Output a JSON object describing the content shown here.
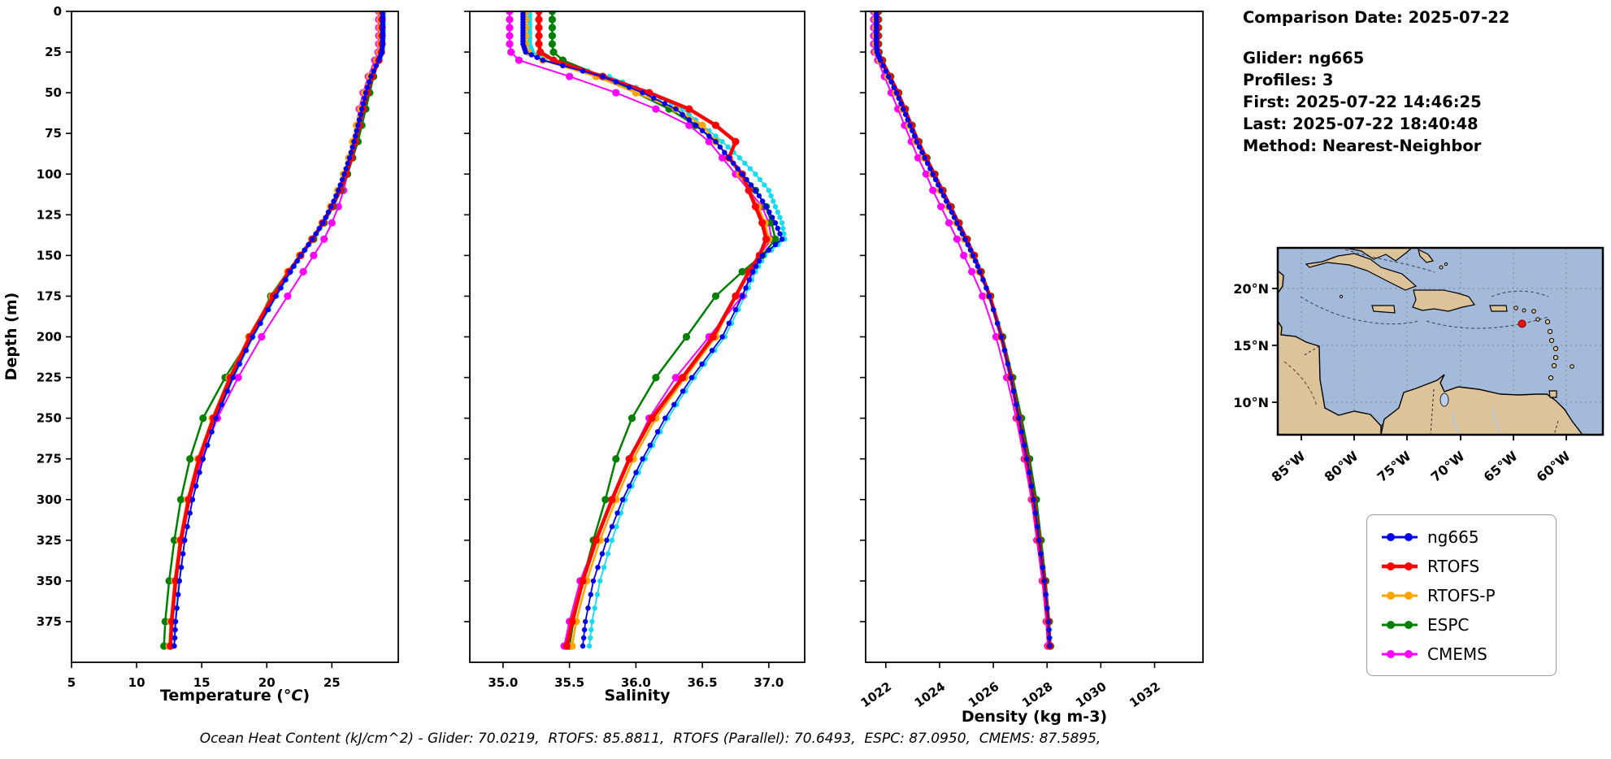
{
  "info": {
    "comparison_date": "Comparison Date: 2025-07-22",
    "glider": "Glider: ng665",
    "profiles": "Profiles: 3",
    "first": "First: 2025-07-22 14:46:25",
    "last": "Last: 2025-07-22 18:40:48",
    "method": "Method: Nearest-Neighbor"
  },
  "footer": {
    "caption": "Ocean Heat Content (kJ/cm^2) - Glider: 70.0219,  RTOFS: 85.8811,  RTOFS (Parallel): 70.6493,  ESPC: 87.0950,  CMEMS: 87.5895,"
  },
  "legend": {
    "items": [
      {
        "label": "ng665",
        "color": "#0000ee",
        "line_width": 3
      },
      {
        "label": "RTOFS",
        "color": "#ff0000",
        "line_width": 4.5
      },
      {
        "label": "RTOFS-P",
        "color": "#ffa500",
        "line_width": 3
      },
      {
        "label": "ESPC",
        "color": "#008000",
        "line_width": 3
      },
      {
        "label": "CMEMS",
        "color": "#ff00ff",
        "line_width": 3
      }
    ]
  },
  "map": {
    "lat_labels": [
      "20°N",
      "15°N",
      "10°N"
    ],
    "lon_labels": [
      "85°W",
      "80°W",
      "75°W",
      "70°W",
      "65°W",
      "60°W"
    ],
    "marker": {
      "lon_w": 64.2,
      "lat_n": 16.9,
      "color": "#e8160c"
    },
    "water_color": "#a3badb",
    "land_color": "#ddc39a"
  },
  "chart_data": {
    "type": "line",
    "orientation": "depth-profile",
    "ylabel": "Depth (m)",
    "ylim": [
      0,
      400
    ],
    "yticks": [
      0,
      25,
      50,
      75,
      100,
      125,
      150,
      175,
      200,
      225,
      250,
      275,
      300,
      325,
      350,
      375
    ],
    "depths": [
      0,
      5,
      10,
      15,
      20,
      25,
      30,
      40,
      50,
      60,
      70,
      80,
      90,
      100,
      110,
      120,
      130,
      140,
      150,
      160,
      175,
      200,
      225,
      250,
      275,
      300,
      325,
      350,
      375,
      390
    ],
    "draw_order": [
      "profile2",
      "CMEMS",
      "ESPC",
      "RTOFS-P",
      "RTOFS",
      "ng665"
    ],
    "series_meta": [
      {
        "name": "ng665",
        "color": "#0000ee",
        "line_width": 1.8,
        "marker": 3.2,
        "dense": true
      },
      {
        "name": "RTOFS",
        "color": "#ff0000",
        "line_width": 4.5,
        "marker": 4.6,
        "dense": false
      },
      {
        "name": "RTOFS-P",
        "color": "#ffa500",
        "line_width": 2.5,
        "marker": 4.6,
        "dense": false
      },
      {
        "name": "ESPC",
        "color": "#008000",
        "line_width": 2.5,
        "marker": 4.6,
        "dense": false
      },
      {
        "name": "CMEMS",
        "color": "#ff00ff",
        "line_width": 2.0,
        "marker": 4.6,
        "dense": false
      },
      {
        "name": "profile2",
        "color": "#17dbee",
        "line_width": 1.8,
        "marker": 3.2,
        "dense": true
      }
    ],
    "charts": [
      {
        "id": "temperature",
        "xlabel_parts": [
          "Temperature (",
          "°C",
          ")"
        ],
        "xlim": [
          5,
          30.1
        ],
        "xticks": [
          5,
          10,
          15,
          20,
          25
        ],
        "xtick_labels": [
          "5",
          "10",
          "15",
          "20",
          "25"
        ],
        "series": {
          "ng665": [
            28.9,
            28.9,
            28.9,
            28.9,
            28.9,
            28.85,
            28.6,
            28.0,
            27.6,
            27.3,
            27.0,
            26.7,
            26.35,
            25.95,
            25.5,
            24.95,
            24.3,
            23.5,
            22.6,
            21.8,
            20.7,
            18.9,
            17.4,
            16.1,
            15.1,
            14.3,
            13.7,
            13.3,
            13.0,
            12.9
          ],
          "RTOFS": [
            28.85,
            28.85,
            28.85,
            28.85,
            28.85,
            28.8,
            28.6,
            28.1,
            27.7,
            27.4,
            27.1,
            26.8,
            26.5,
            26.1,
            25.6,
            25.0,
            24.3,
            23.5,
            22.6,
            21.7,
            20.5,
            18.7,
            17.2,
            15.9,
            14.8,
            14.0,
            13.4,
            13.0,
            12.7,
            12.6
          ],
          "RTOFS-P": [
            28.7,
            28.7,
            28.7,
            28.7,
            28.7,
            28.65,
            28.45,
            27.9,
            27.5,
            27.2,
            26.9,
            26.6,
            26.3,
            25.9,
            25.45,
            24.9,
            24.25,
            23.45,
            22.5,
            21.6,
            20.4,
            18.6,
            17.1,
            15.8,
            14.7,
            13.9,
            13.3,
            12.9,
            12.6,
            12.5
          ],
          "ESPC": [
            28.75,
            28.75,
            28.75,
            28.75,
            28.75,
            28.7,
            28.6,
            28.2,
            27.9,
            27.6,
            27.3,
            27.0,
            26.6,
            26.2,
            25.7,
            25.1,
            24.4,
            23.6,
            22.6,
            21.6,
            20.3,
            18.8,
            16.8,
            15.1,
            14.1,
            13.4,
            12.9,
            12.5,
            12.2,
            12.1
          ],
          "CMEMS": [
            28.6,
            28.6,
            28.6,
            28.6,
            28.6,
            28.55,
            28.3,
            27.8,
            27.4,
            27.1,
            26.9,
            26.7,
            26.5,
            26.2,
            25.9,
            25.5,
            25.0,
            24.4,
            23.6,
            22.8,
            21.6,
            19.6,
            17.8,
            16.2,
            15.0,
            14.1,
            13.5,
            13.0,
            12.7,
            12.6
          ],
          "profile2": [
            28.95,
            28.95,
            28.95,
            28.95,
            28.9,
            28.85,
            28.6,
            28.05,
            27.65,
            27.35,
            27.05,
            26.75,
            26.4,
            26.0,
            25.55,
            25.0,
            24.35,
            23.55,
            22.65,
            21.85,
            20.75,
            18.95,
            17.45,
            16.15,
            15.1,
            14.3,
            13.7,
            13.25,
            12.95,
            12.85
          ]
        }
      },
      {
        "id": "salinity",
        "xlabel_parts": [
          "Salinity"
        ],
        "xlim": [
          34.75,
          37.27
        ],
        "xticks": [
          35.0,
          35.5,
          36.0,
          36.5,
          37.0
        ],
        "xtick_labels": [
          "35.0",
          "35.5",
          "36.0",
          "36.5",
          "37.0"
        ],
        "series": {
          "ng665": [
            35.15,
            35.15,
            35.15,
            35.15,
            35.15,
            35.17,
            35.3,
            35.75,
            36.05,
            36.3,
            36.45,
            36.6,
            36.7,
            36.8,
            36.9,
            36.98,
            37.05,
            37.1,
            36.95,
            36.88,
            36.8,
            36.65,
            36.42,
            36.22,
            36.05,
            35.9,
            35.78,
            35.68,
            35.62,
            35.6
          ],
          "RTOFS": [
            35.27,
            35.27,
            35.27,
            35.27,
            35.27,
            35.28,
            35.38,
            35.75,
            36.1,
            36.4,
            36.6,
            36.75,
            36.7,
            36.8,
            36.85,
            36.9,
            36.95,
            36.98,
            36.93,
            36.85,
            36.75,
            36.58,
            36.35,
            36.12,
            35.95,
            35.82,
            35.7,
            35.6,
            35.52,
            35.48
          ],
          "RTOFS-P": [
            35.17,
            35.17,
            35.17,
            35.17,
            35.17,
            35.19,
            35.3,
            35.7,
            36.0,
            36.3,
            36.5,
            36.6,
            36.7,
            36.78,
            36.85,
            36.92,
            36.97,
            37.0,
            36.93,
            36.85,
            36.75,
            36.6,
            36.37,
            36.15,
            35.98,
            35.85,
            35.73,
            35.63,
            35.55,
            35.52
          ],
          "ESPC": [
            35.37,
            35.37,
            35.37,
            35.37,
            35.37,
            35.38,
            35.45,
            35.75,
            36.0,
            36.25,
            36.45,
            36.6,
            36.7,
            36.8,
            36.9,
            36.98,
            37.02,
            37.05,
            36.95,
            36.8,
            36.6,
            36.38,
            36.15,
            35.97,
            35.85,
            35.77,
            35.68,
            35.6,
            35.53,
            35.5
          ],
          "CMEMS": [
            35.05,
            35.05,
            35.05,
            35.05,
            35.05,
            35.06,
            35.12,
            35.5,
            35.85,
            36.15,
            36.4,
            36.55,
            36.65,
            36.75,
            36.85,
            36.95,
            37.0,
            37.02,
            36.93,
            36.87,
            36.8,
            36.55,
            36.3,
            36.1,
            35.95,
            35.83,
            35.7,
            35.58,
            35.5,
            35.46
          ],
          "profile2": [
            35.2,
            35.2,
            35.2,
            35.2,
            35.2,
            35.22,
            35.32,
            35.8,
            36.1,
            36.35,
            36.5,
            36.65,
            36.78,
            36.9,
            37.0,
            37.05,
            37.1,
            37.12,
            36.97,
            36.9,
            36.82,
            36.67,
            36.44,
            36.24,
            36.07,
            35.92,
            35.82,
            35.73,
            35.67,
            35.65
          ]
        }
      },
      {
        "id": "density",
        "xlabel_parts": [
          "Density (kg m-3)"
        ],
        "xlim": [
          1021.25,
          1033.8
        ],
        "xticks": [
          1022,
          1024,
          1026,
          1028,
          1030,
          1032
        ],
        "xtick_labels": [
          "1022",
          "1024",
          "1026",
          "1028",
          "1030",
          "1032"
        ],
        "series": {
          "ng665": [
            1021.65,
            1021.65,
            1021.65,
            1021.65,
            1021.65,
            1021.67,
            1021.8,
            1022.1,
            1022.4,
            1022.65,
            1022.9,
            1023.15,
            1023.45,
            1023.75,
            1024.05,
            1024.35,
            1024.65,
            1024.95,
            1025.25,
            1025.5,
            1025.85,
            1026.3,
            1026.65,
            1026.95,
            1027.25,
            1027.5,
            1027.7,
            1027.9,
            1028.05,
            1028.1
          ],
          "RTOFS": [
            1021.7,
            1021.7,
            1021.7,
            1021.7,
            1021.7,
            1021.72,
            1021.85,
            1022.15,
            1022.45,
            1022.7,
            1022.95,
            1023.2,
            1023.5,
            1023.8,
            1024.1,
            1024.4,
            1024.7,
            1025.0,
            1025.28,
            1025.52,
            1025.87,
            1026.3,
            1026.65,
            1026.95,
            1027.25,
            1027.5,
            1027.7,
            1027.9,
            1028.05,
            1028.1
          ],
          "RTOFS-P": [
            1021.62,
            1021.62,
            1021.62,
            1021.62,
            1021.62,
            1021.64,
            1021.77,
            1022.07,
            1022.37,
            1022.62,
            1022.87,
            1023.12,
            1023.42,
            1023.72,
            1024.02,
            1024.32,
            1024.62,
            1024.92,
            1025.22,
            1025.48,
            1025.83,
            1026.28,
            1026.63,
            1026.93,
            1027.23,
            1027.48,
            1027.68,
            1027.88,
            1028.03,
            1028.08
          ],
          "ESPC": [
            1021.73,
            1021.73,
            1021.73,
            1021.73,
            1021.73,
            1021.75,
            1021.88,
            1022.18,
            1022.48,
            1022.73,
            1022.98,
            1023.23,
            1023.53,
            1023.83,
            1024.13,
            1024.43,
            1024.73,
            1025.03,
            1025.3,
            1025.55,
            1025.9,
            1026.35,
            1026.72,
            1027.05,
            1027.35,
            1027.6,
            1027.78,
            1027.95,
            1028.08,
            1028.13
          ],
          "CMEMS": [
            1021.55,
            1021.55,
            1021.55,
            1021.55,
            1021.55,
            1021.57,
            1021.7,
            1021.95,
            1022.2,
            1022.45,
            1022.7,
            1022.95,
            1023.2,
            1023.5,
            1023.75,
            1024.05,
            1024.35,
            1024.65,
            1024.9,
            1025.2,
            1025.6,
            1026.1,
            1026.5,
            1026.85,
            1027.15,
            1027.42,
            1027.62,
            1027.82,
            1027.97,
            1028.02
          ],
          "profile2": [
            1021.67,
            1021.67,
            1021.67,
            1021.67,
            1021.67,
            1021.69,
            1021.82,
            1022.12,
            1022.42,
            1022.67,
            1022.92,
            1023.17,
            1023.47,
            1023.77,
            1024.07,
            1024.37,
            1024.67,
            1024.97,
            1025.27,
            1025.52,
            1025.87,
            1026.32,
            1026.67,
            1026.97,
            1027.27,
            1027.52,
            1027.72,
            1027.92,
            1028.07,
            1028.12
          ]
        }
      }
    ]
  }
}
